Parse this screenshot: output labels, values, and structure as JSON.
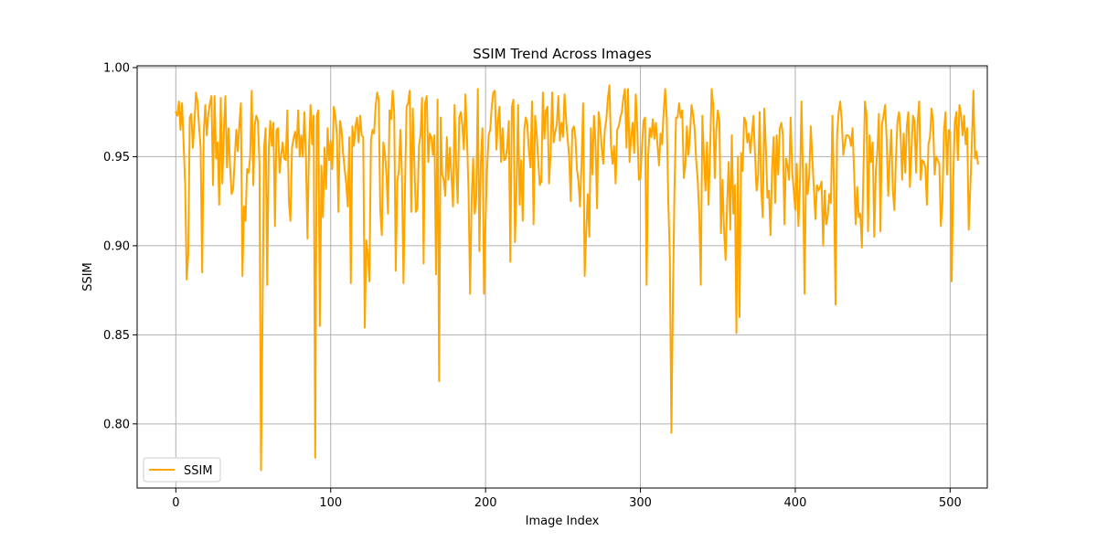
{
  "chart_data": {
    "type": "line",
    "title": "SSIM Trend Across Images",
    "xlabel": "Image Index",
    "ylabel": "SSIM",
    "xlim": [
      -25,
      524
    ],
    "ylim": [
      0.764,
      1.001
    ],
    "x_ticks": [
      0,
      100,
      200,
      300,
      400,
      500
    ],
    "y_ticks": [
      0.8,
      0.85,
      0.9,
      0.95,
      1.0
    ],
    "x_tick_labels": [
      "0",
      "100",
      "200",
      "300",
      "400",
      "500"
    ],
    "y_tick_labels": [
      "0.80",
      "0.85",
      "0.90",
      "0.95",
      "1.00"
    ],
    "grid": true,
    "legend_position": "lower-left",
    "series": [
      {
        "name": "SSIM",
        "color": "#ffa500",
        "x_start": 0,
        "x_step": 1,
        "values": [
          0.975,
          0.973,
          0.981,
          0.965,
          0.98,
          0.958,
          0.935,
          0.881,
          0.895,
          0.972,
          0.974,
          0.955,
          0.969,
          0.986,
          0.981,
          0.967,
          0.955,
          0.885,
          0.963,
          0.979,
          0.962,
          0.974,
          0.98,
          0.984,
          0.934,
          0.984,
          0.949,
          0.958,
          0.923,
          0.983,
          0.935,
          0.964,
          0.984,
          0.944,
          0.966,
          0.945,
          0.929,
          0.932,
          0.948,
          0.965,
          0.953,
          0.968,
          0.98,
          0.883,
          0.922,
          0.914,
          0.943,
          0.941,
          0.95,
          0.987,
          0.934,
          0.968,
          0.973,
          0.97,
          0.946,
          0.774,
          0.861,
          0.955,
          0.966,
          0.878,
          0.955,
          0.97,
          0.956,
          0.969,
          0.911,
          0.965,
          0.966,
          0.941,
          0.951,
          0.958,
          0.949,
          0.948,
          0.976,
          0.925,
          0.914,
          0.955,
          0.96,
          0.964,
          0.955,
          0.976,
          0.95,
          0.962,
          0.95,
          0.975,
          0.95,
          0.904,
          0.955,
          0.979,
          0.957,
          0.973,
          0.781,
          0.973,
          0.976,
          0.855,
          0.945,
          0.916,
          0.955,
          0.932,
          0.966,
          0.948,
          0.959,
          0.943,
          0.978,
          0.973,
          0.962,
          0.919,
          0.97,
          0.965,
          0.952,
          0.943,
          0.935,
          0.922,
          0.961,
          0.879,
          0.967,
          0.956,
          0.967,
          0.972,
          0.958,
          0.973,
          0.962,
          0.961,
          0.854,
          0.903,
          0.895,
          0.88,
          0.959,
          0.965,
          0.963,
          0.978,
          0.986,
          0.982,
          0.92,
          0.906,
          0.958,
          0.952,
          0.94,
          0.918,
          0.976,
          0.971,
          0.987,
          0.975,
          0.886,
          0.936,
          0.942,
          0.965,
          0.94,
          0.879,
          0.933,
          0.978,
          0.98,
          0.987,
          0.919,
          0.977,
          0.947,
          0.919,
          0.921,
          0.956,
          0.962,
          0.983,
          0.89,
          0.98,
          0.984,
          0.947,
          0.963,
          0.961,
          0.951,
          0.962,
          0.884,
          0.982,
          0.824,
          0.972,
          0.94,
          0.937,
          0.928,
          0.961,
          0.937,
          0.955,
          0.939,
          0.922,
          0.979,
          0.946,
          0.924,
          0.972,
          0.975,
          0.968,
          0.954,
          0.985,
          0.961,
          0.931,
          0.873,
          0.925,
          0.949,
          0.918,
          0.927,
          0.988,
          0.897,
          0.948,
          0.966,
          0.873,
          0.914,
          0.943,
          0.962,
          0.965,
          0.978,
          0.986,
          0.987,
          0.954,
          0.97,
          0.978,
          0.947,
          0.966,
          0.948,
          0.949,
          0.956,
          0.97,
          0.891,
          0.978,
          0.982,
          0.902,
          0.932,
          0.979,
          0.923,
          0.948,
          0.914,
          0.965,
          0.972,
          0.968,
          0.953,
          0.944,
          0.981,
          0.912,
          0.973,
          0.963,
          0.948,
          0.934,
          0.936,
          0.986,
          0.96,
          0.976,
          0.978,
          0.935,
          0.952,
          0.986,
          0.958,
          0.964,
          0.968,
          0.984,
          0.959,
          0.969,
          0.961,
          0.985,
          0.971,
          0.96,
          0.95,
          0.925,
          0.965,
          0.967,
          0.961,
          0.943,
          0.936,
          0.922,
          0.946,
          0.98,
          0.883,
          0.908,
          0.929,
          0.905,
          0.966,
          0.94,
          0.973,
          0.958,
          0.921,
          0.975,
          0.968,
          0.955,
          0.946,
          0.965,
          0.971,
          0.983,
          0.99,
          0.956,
          0.946,
          0.956,
          0.935,
          0.965,
          0.967,
          0.972,
          0.975,
          0.983,
          0.988,
          0.955,
          0.988,
          0.947,
          0.961,
          0.969,
          0.952,
          0.985,
          0.966,
          0.937,
          0.938,
          0.955,
          0.97,
          0.972,
          0.878,
          0.95,
          0.966,
          0.961,
          0.971,
          0.96,
          0.969,
          0.957,
          0.945,
          0.963,
          0.957,
          0.975,
          0.988,
          0.972,
          0.925,
          0.894,
          0.795,
          0.871,
          0.932,
          0.972,
          0.972,
          0.98,
          0.972,
          0.976,
          0.938,
          0.945,
          0.967,
          0.951,
          0.962,
          0.979,
          0.974,
          0.966,
          0.948,
          0.937,
          0.917,
          0.878,
          0.973,
          0.95,
          0.931,
          0.958,
          0.923,
          0.954,
          0.988,
          0.979,
          0.938,
          0.965,
          0.976,
          0.97,
          0.907,
          0.937,
          0.909,
          0.892,
          0.924,
          0.947,
          0.909,
          0.962,
          0.918,
          0.934,
          0.851,
          0.95,
          0.86,
          0.952,
          0.942,
          0.972,
          0.97,
          0.958,
          0.963,
          0.952,
          0.963,
          0.973,
          0.951,
          0.931,
          0.939,
          0.975,
          0.932,
          0.916,
          0.977,
          0.955,
          0.927,
          0.931,
          0.906,
          0.943,
          0.961,
          0.924,
          0.962,
          0.94,
          0.966,
          0.969,
          0.962,
          0.912,
          0.949,
          0.945,
          0.937,
          0.972,
          0.942,
          0.931,
          0.92,
          0.946,
          0.911,
          0.934,
          0.981,
          0.937,
          0.873,
          0.946,
          0.929,
          0.939,
          0.967,
          0.949,
          0.932,
          0.915,
          0.934,
          0.931,
          0.933,
          0.936,
          0.9,
          0.931,
          0.912,
          0.917,
          0.929,
          0.924,
          0.973,
          0.931,
          0.867,
          0.962,
          0.975,
          0.981,
          0.97,
          0.951,
          0.957,
          0.962,
          0.962,
          0.961,
          0.956,
          0.966,
          0.941,
          0.912,
          0.933,
          0.916,
          0.918,
          0.899,
          0.941,
          0.981,
          0.974,
          0.908,
          0.962,
          0.947,
          0.958,
          0.905,
          0.942,
          0.953,
          0.974,
          0.908,
          0.968,
          0.973,
          0.979,
          0.96,
          0.928,
          0.948,
          0.965,
          0.931,
          0.92,
          0.949,
          0.97,
          0.975,
          0.963,
          0.937,
          0.963,
          0.941,
          0.967,
          0.975,
          0.933,
          0.953,
          0.973,
          0.97,
          0.941,
          0.969,
          0.981,
          0.937,
          0.948,
          0.947,
          0.944,
          0.923,
          0.957,
          0.961,
          0.977,
          0.969,
          0.94,
          0.95,
          0.948,
          0.946,
          0.911,
          0.924,
          0.964,
          0.975,
          0.94,
          0.965,
          0.964,
          0.88,
          0.937,
          0.969,
          0.975,
          0.948,
          0.979,
          0.974,
          0.962,
          0.973,
          0.957,
          0.966,
          0.909,
          0.932,
          0.957,
          0.987,
          0.949,
          0.953,
          0.946
        ]
      }
    ]
  }
}
